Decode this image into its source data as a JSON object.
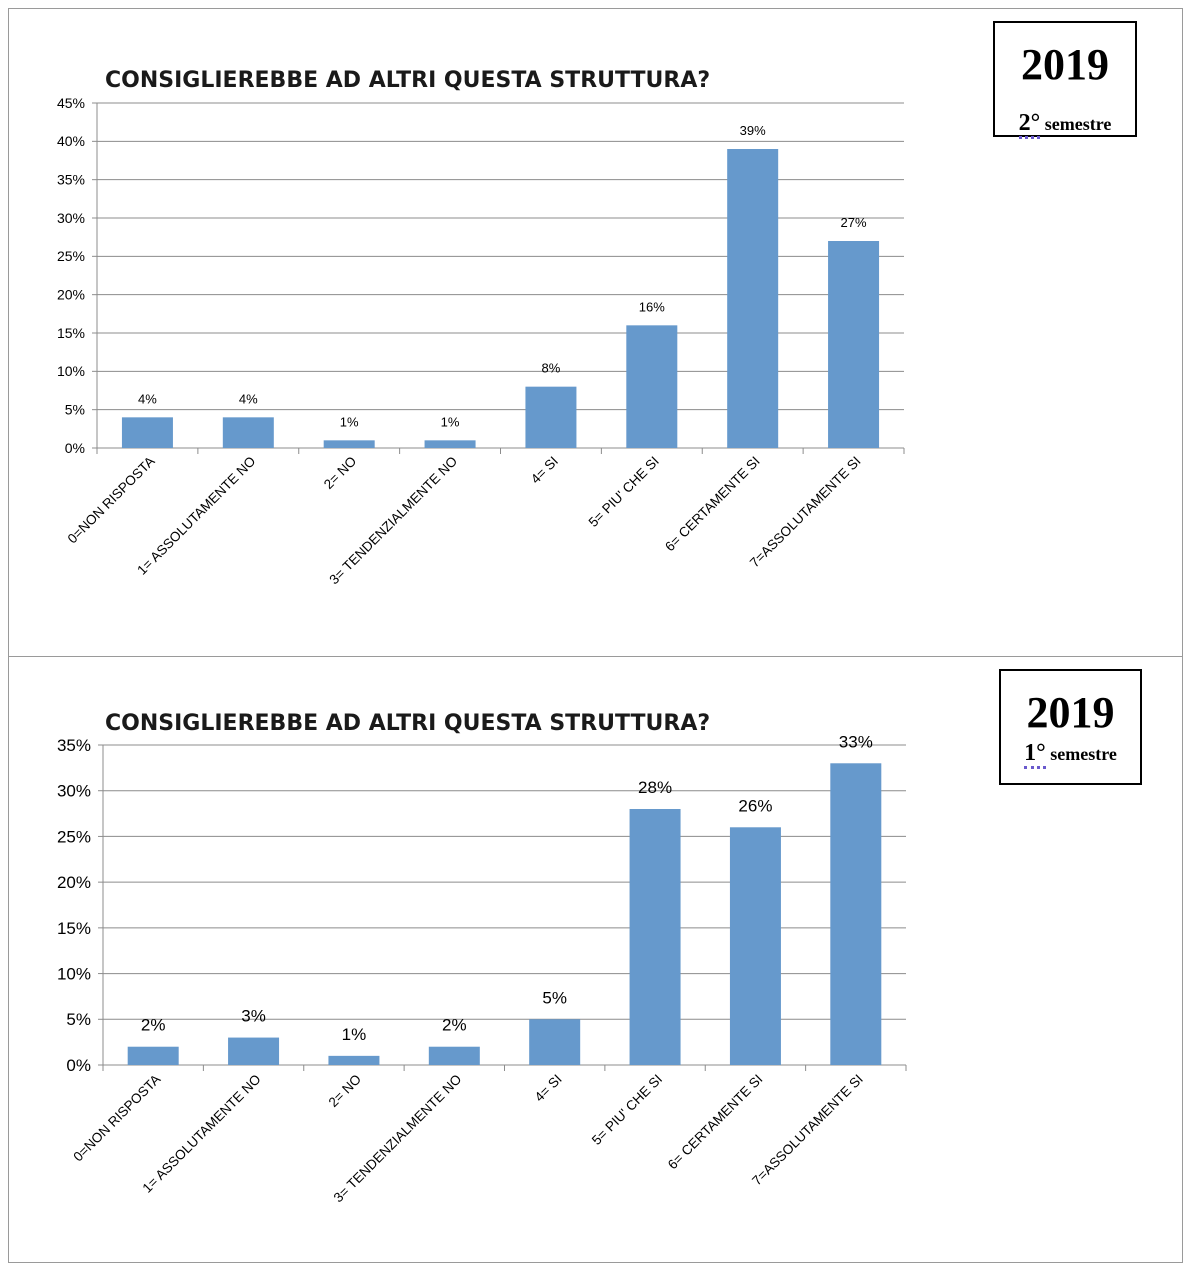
{
  "chart_data": [
    {
      "type": "bar",
      "title": "CONSIGLIEREBBE AD ALTRI QUESTA STRUTTURA?",
      "categories": [
        "0=NON RISPOSTA",
        "1= ASSOLUTAMENTE NO",
        "2= NO",
        "3= TENDENZIALMENTE NO",
        "4= SI",
        "5= PIU' CHE SI",
        "6= CERTAMENTE SI",
        "7=ASSOLUTAMENTE SI"
      ],
      "values": [
        0.04,
        0.04,
        0.01,
        0.01,
        0.08,
        0.16,
        0.39,
        0.27
      ],
      "data_labels": [
        "4%",
        "4%",
        "1%",
        "1%",
        "8%",
        "16%",
        "39%",
        "27%"
      ],
      "ylim": [
        0,
        0.45
      ],
      "yticks": [
        "0%",
        "5%",
        "10%",
        "15%",
        "20%",
        "25%",
        "30%",
        "35%",
        "40%",
        "45%"
      ],
      "grid": true,
      "bar_color": "#6699cc"
    },
    {
      "type": "bar",
      "title": "CONSIGLIEREBBE AD ALTRI QUESTA STRUTTURA?",
      "categories": [
        "0=NON RISPOSTA",
        "1= ASSOLUTAMENTE NO",
        "2= NO",
        "3= TENDENZIALMENTE NO",
        "4= SI",
        "5= PIU' CHE SI",
        "6= CERTAMENTE SI",
        "7=ASSOLUTAMENTE SI"
      ],
      "values": [
        0.02,
        0.03,
        0.01,
        0.02,
        0.05,
        0.28,
        0.26,
        0.33
      ],
      "data_labels": [
        "2%",
        "3%",
        "1%",
        "2%",
        "5%",
        "28%",
        "26%",
        "33%"
      ],
      "ylim": [
        0,
        0.35
      ],
      "yticks": [
        "0%",
        "5%",
        "10%",
        "15%",
        "20%",
        "25%",
        "30%",
        "35%"
      ],
      "grid": true,
      "bar_color": "#6699cc"
    }
  ],
  "badges": [
    {
      "year": "2019",
      "ordinal": "2°",
      "label": "semestre"
    },
    {
      "year": "2019",
      "ordinal": "1°",
      "label": "semestre"
    }
  ]
}
